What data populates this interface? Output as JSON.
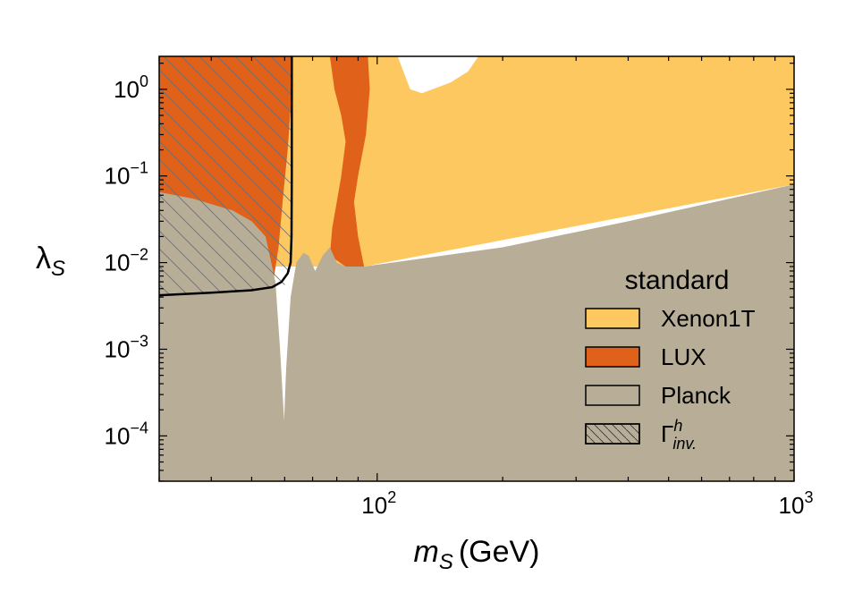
{
  "chart_data": {
    "type": "area",
    "title": "",
    "xlabel": {
      "symbol": "m",
      "sub": "S",
      "unit": "(GeV)"
    },
    "ylabel": {
      "symbol": "λ",
      "sub": "S"
    },
    "x_scale": "log",
    "y_scale": "log",
    "xlim": [
      30,
      1000
    ],
    "ylim": [
      3e-05,
      2.4
    ],
    "x_ticks": [
      {
        "value": 100,
        "base": "10",
        "exp": "2"
      },
      {
        "value": 1000,
        "base": "10",
        "exp": "3"
      }
    ],
    "y_ticks": [
      {
        "value": 1,
        "base": "10",
        "exp": "0"
      },
      {
        "value": 0.1,
        "base": "10",
        "exp": "−1"
      },
      {
        "value": 0.01,
        "base": "10",
        "exp": "−2"
      },
      {
        "value": 0.001,
        "base": "10",
        "exp": "−3"
      },
      {
        "value": 0.0001,
        "base": "10",
        "exp": "−4"
      }
    ],
    "colors": {
      "background": "#ffffff",
      "xenon1t": "#fdc85f",
      "lux": "#e0611a",
      "planck": "#b8ad96",
      "hatch": "#6e6e6e",
      "invisible_curve": "#000000"
    },
    "series": [
      {
        "name": "Xenon1T",
        "kind": "region",
        "color": "#fdc85f",
        "polygon": [
          [
            30,
            2.4
          ],
          [
            112,
            2.4
          ],
          [
            120,
            1.0
          ],
          [
            128,
            0.9
          ],
          [
            150,
            1.2
          ],
          [
            165,
            1.6
          ],
          [
            175,
            2.4
          ],
          [
            1000,
            2.4
          ],
          [
            1000,
            0.08
          ],
          [
            93,
            0.009
          ],
          [
            60,
            0.009
          ],
          [
            30,
            0.009
          ]
        ]
      },
      {
        "name": "LUX",
        "kind": "region",
        "color": "#e0611a",
        "polygon": [
          [
            30,
            2.4
          ],
          [
            62.3,
            2.4
          ],
          [
            62,
            0.6
          ],
          [
            61,
            0.2
          ],
          [
            59.5,
            0.06
          ],
          [
            58,
            0.015
          ],
          [
            56,
            0.005
          ],
          [
            30,
            0.005
          ]
        ]
      },
      {
        "name": "LUX",
        "kind": "region",
        "color": "#e0611a",
        "polygon": [
          [
            66,
            2.4
          ],
          [
            77,
            2.4
          ],
          [
            79,
            1.0
          ],
          [
            82,
            0.5
          ],
          [
            84,
            0.25
          ],
          [
            82,
            0.1
          ],
          [
            80,
            0.05
          ],
          [
            78,
            0.025
          ],
          [
            77,
            0.012
          ],
          [
            84,
            0.009
          ],
          [
            93,
            0.009
          ],
          [
            90,
            0.02
          ],
          [
            88,
            0.05
          ],
          [
            90,
            0.1
          ],
          [
            94,
            0.3
          ],
          [
            96,
            1.0
          ],
          [
            95,
            2.4
          ]
        ]
      },
      {
        "name": "Planck",
        "kind": "region",
        "color": "#b8ad96",
        "polygon": [
          [
            30,
            0.065
          ],
          [
            36,
            0.055
          ],
          [
            45,
            0.04
          ],
          [
            50,
            0.03
          ],
          [
            54,
            0.02
          ],
          [
            57,
            0.006
          ],
          [
            58.5,
            0.001
          ],
          [
            59.8,
            0.00015
          ],
          [
            60.5,
            0.0006
          ],
          [
            62,
            0.004
          ],
          [
            64,
            0.01
          ],
          [
            66.5,
            0.013
          ],
          [
            68.5,
            0.012
          ],
          [
            71,
            0.008
          ],
          [
            74,
            0.012
          ],
          [
            77,
            0.015
          ],
          [
            80,
            0.01
          ],
          [
            84,
            0.009
          ],
          [
            93,
            0.009
          ],
          [
            200,
            0.015
          ],
          [
            400,
            0.03
          ],
          [
            1000,
            0.08
          ],
          [
            1000,
            3e-05
          ],
          [
            30,
            3e-05
          ]
        ]
      },
      {
        "name": "Γ",
        "sup": "h",
        "sub": "inv.",
        "kind": "hatched",
        "polygon": [
          [
            30,
            2.4
          ],
          [
            62.3,
            2.4
          ],
          [
            62.3,
            0.012
          ],
          [
            61.5,
            0.007
          ],
          [
            60,
            0.0055
          ],
          [
            55,
            0.005
          ],
          [
            30,
            0.0042
          ]
        ]
      }
    ],
    "boundary_curve": {
      "points": [
        [
          30,
          0.0042
        ],
        [
          40,
          0.0045
        ],
        [
          50,
          0.0048
        ],
        [
          56,
          0.0052
        ],
        [
          59,
          0.006
        ],
        [
          61,
          0.0075
        ],
        [
          62,
          0.01
        ],
        [
          62.3,
          0.02
        ],
        [
          62.4,
          0.1
        ],
        [
          62.4,
          2.4
        ]
      ]
    },
    "legend": {
      "title": "standard",
      "position": "bottom-right",
      "entries": [
        {
          "label": "Xenon1T",
          "style": "fill",
          "color": "#fdc85f"
        },
        {
          "label": "LUX",
          "style": "fill",
          "color": "#e0611a"
        },
        {
          "label": "Planck",
          "style": "fill",
          "color": "#b8ad96"
        },
        {
          "label": "Γ",
          "sup": "h",
          "sub": "inv.",
          "style": "hatch",
          "color": "#b8ad96"
        }
      ]
    }
  }
}
